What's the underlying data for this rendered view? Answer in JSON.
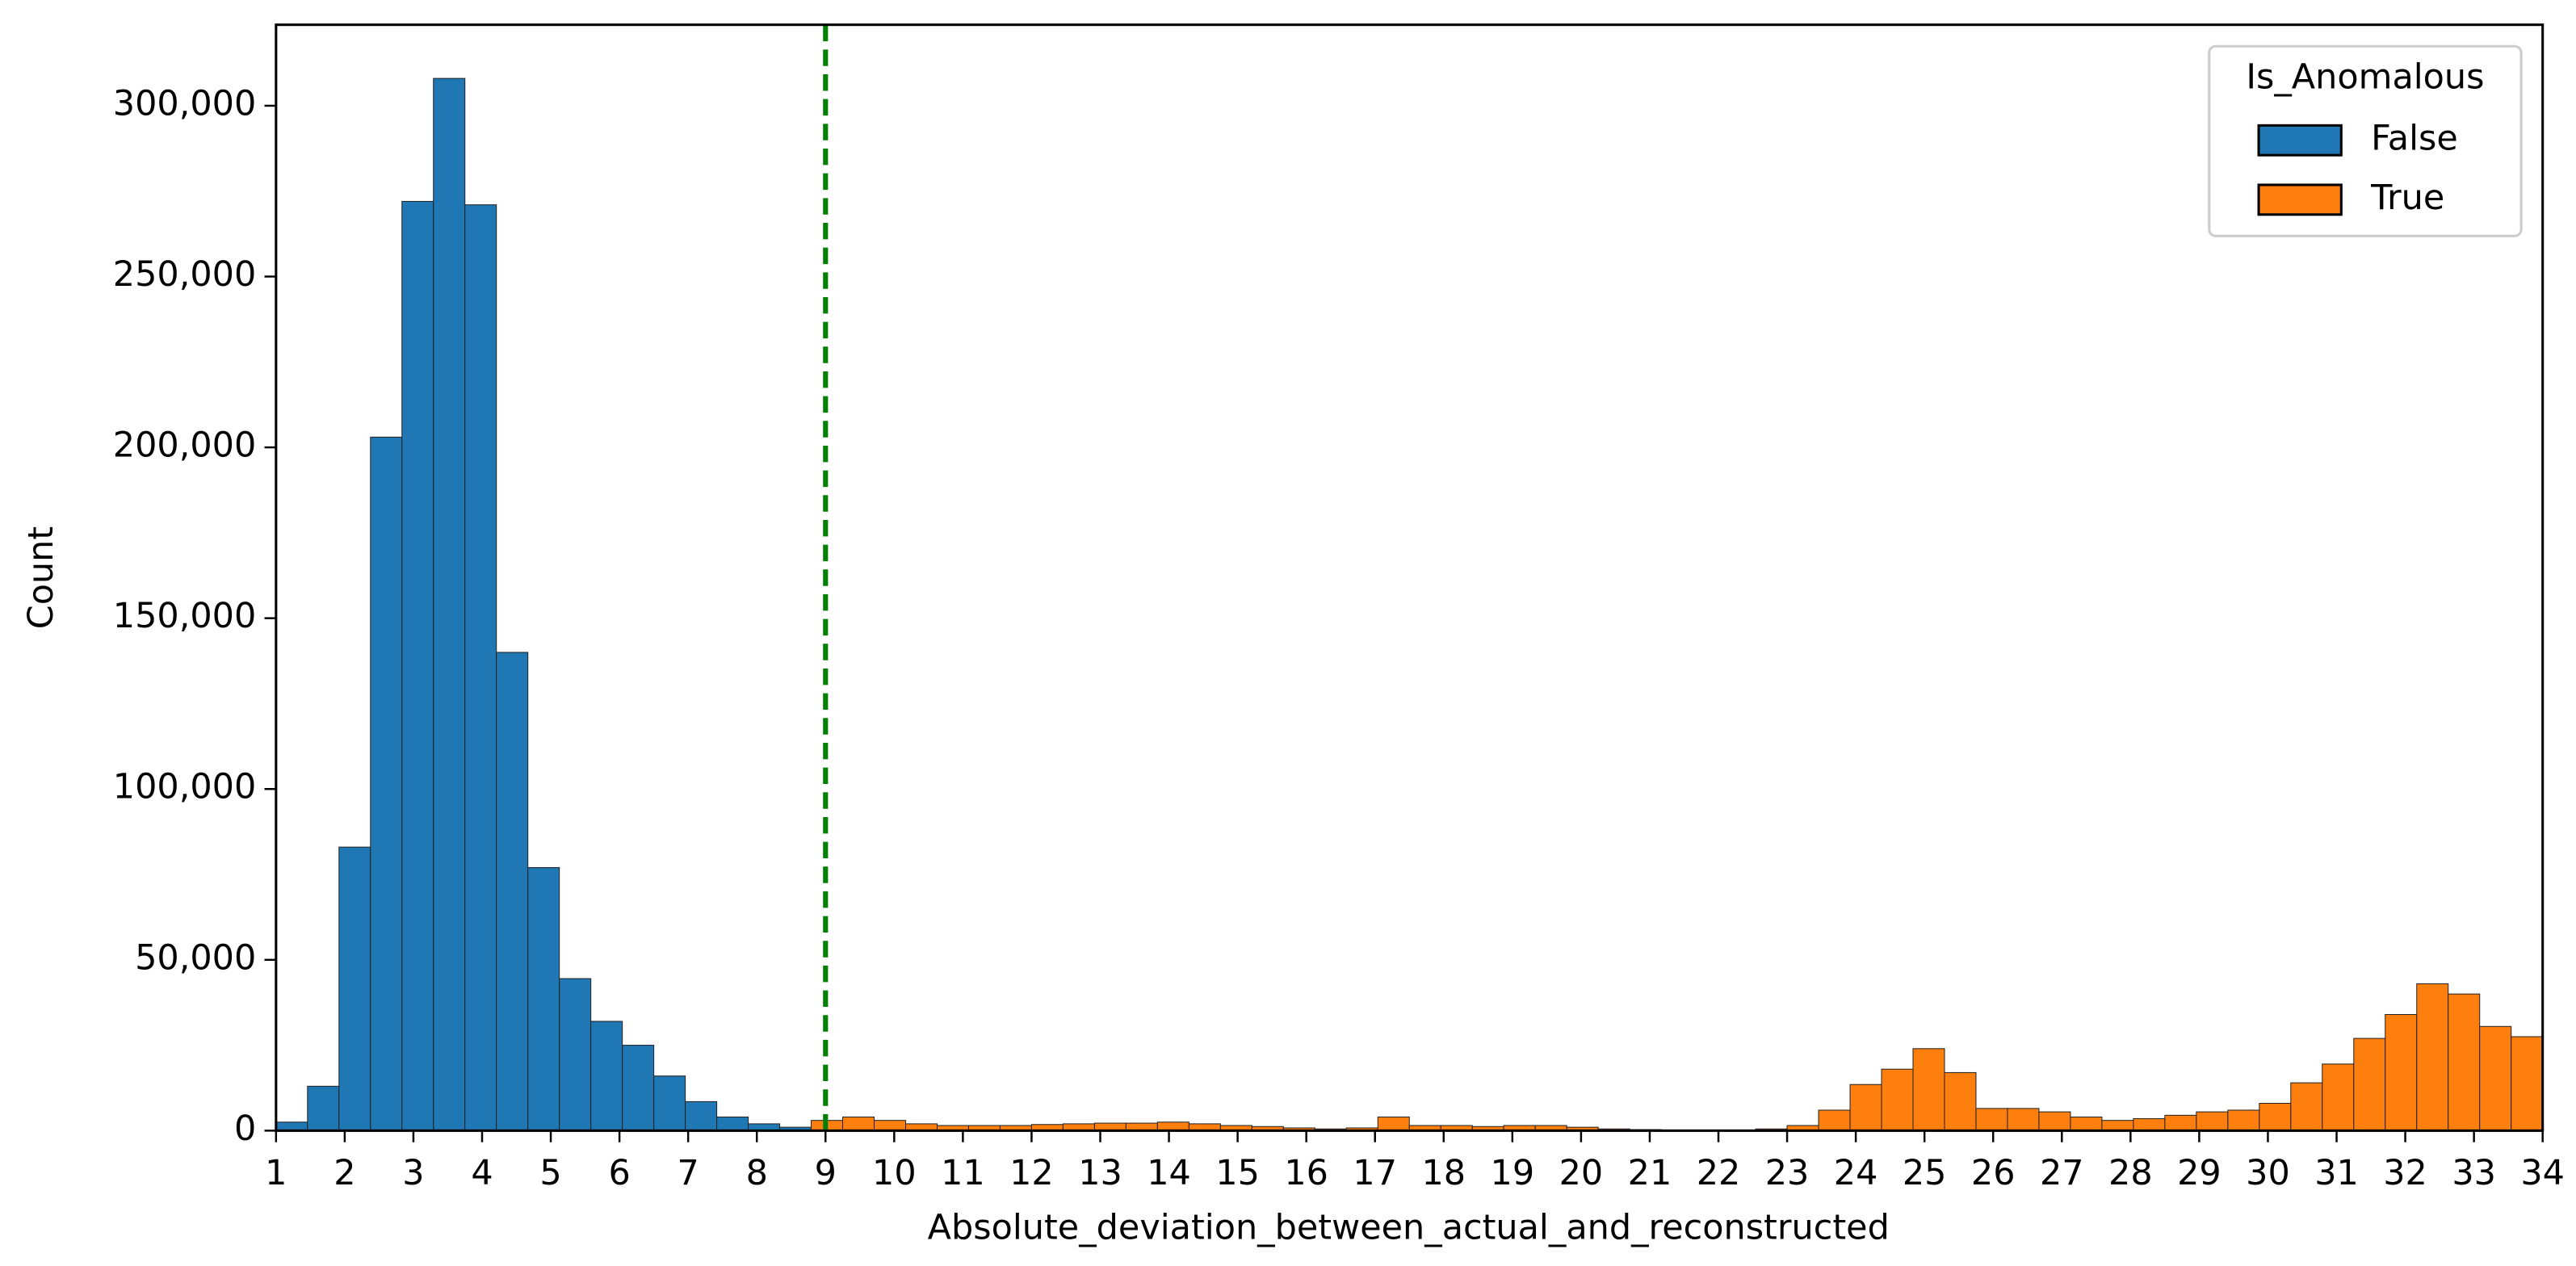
{
  "chart_data": {
    "type": "histogram",
    "xlabel": "Absolute_deviation_between_actual_and_reconstructed",
    "ylabel": "Count",
    "bins": [
      1,
      1.4583,
      1.9167,
      2.375,
      2.8333,
      3.2917,
      3.75,
      4.2083,
      4.6667,
      5.125,
      5.5833,
      6.0417,
      6.5,
      6.9583,
      7.4167,
      7.875,
      8.3333,
      8.7917,
      9.25,
      9.7083,
      10.1667,
      10.625,
      11.0833,
      11.5417,
      12,
      12.4583,
      12.9167,
      13.375,
      13.8333,
      14.2917,
      14.75,
      15.2083,
      15.6667,
      16.125,
      16.5833,
      17.0417,
      17.5,
      17.9583,
      18.4167,
      18.875,
      19.3333,
      19.7917,
      20.25,
      20.7083,
      21.1667,
      21.625,
      22.0833,
      22.5417,
      23,
      23.4583,
      23.9167,
      24.375,
      24.8333,
      25.2917,
      25.75,
      26.2083,
      26.6667,
      27.125,
      27.5833,
      28.0417,
      28.5,
      28.9583,
      29.4167,
      29.875,
      30.3333,
      30.7917,
      31.25,
      31.7083,
      32.1667,
      32.625,
      33.0833,
      33.5417,
      34
    ],
    "series": [
      {
        "name": "False",
        "color": "#1f77b4",
        "values": [
          2500,
          13000,
          83000,
          203000,
          272000,
          308000,
          271000,
          140000,
          77000,
          44500,
          32000,
          25000,
          16000,
          8500,
          4000,
          2000,
          1000,
          300,
          0,
          0,
          0,
          0,
          0,
          0,
          0,
          0,
          0,
          0,
          0,
          0,
          0,
          0,
          0,
          0,
          0,
          0,
          0,
          0,
          0,
          0,
          0,
          0,
          0,
          0,
          0,
          0,
          0,
          0,
          0,
          0,
          0,
          0,
          0,
          0,
          0,
          0,
          0,
          0,
          0,
          0,
          0,
          0,
          0,
          0,
          0,
          0,
          0,
          0,
          0,
          0,
          0,
          0
        ]
      },
      {
        "name": "True",
        "color": "#ff7f0e",
        "values": [
          0,
          0,
          0,
          0,
          0,
          0,
          0,
          0,
          0,
          0,
          0,
          0,
          0,
          0,
          0,
          0,
          0,
          3000,
          4000,
          3000,
          2000,
          1500,
          1500,
          1500,
          1800,
          2000,
          2200,
          2200,
          2500,
          2000,
          1500,
          1200,
          800,
          500,
          800,
          4000,
          1500,
          1500,
          1200,
          1500,
          1500,
          1000,
          500,
          300,
          200,
          200,
          200,
          500,
          1500,
          6000,
          13500,
          18000,
          24000,
          17000,
          6500,
          6500,
          5500,
          4000,
          3000,
          3500,
          4500,
          5500,
          6000,
          8000,
          14000,
          19500,
          27000,
          34000,
          43000,
          40000,
          30500,
          27500
        ]
      }
    ],
    "vlines": [
      {
        "x": 9,
        "color": "#008000",
        "style": "dashed"
      }
    ],
    "xlim": [
      1,
      34
    ],
    "xticks": [
      1,
      2,
      3,
      4,
      5,
      6,
      7,
      8,
      9,
      10,
      11,
      12,
      13,
      14,
      15,
      16,
      17,
      18,
      19,
      20,
      21,
      22,
      23,
      24,
      25,
      26,
      27,
      28,
      29,
      30,
      31,
      32,
      33,
      34
    ],
    "ylim": [
      0,
      323700
    ],
    "yticks": [
      0,
      {
        "value": 50000,
        "label": "50,000"
      },
      {
        "value": 100000,
        "label": "100,000"
      },
      {
        "value": 150000,
        "label": "150,000"
      },
      {
        "value": 200000,
        "label": "200,000"
      },
      {
        "value": 250000,
        "label": "250,000"
      },
      {
        "value": 300000,
        "label": "300,000"
      }
    ],
    "legend": {
      "title": "Is_Anomalous",
      "position": "upper right"
    }
  }
}
